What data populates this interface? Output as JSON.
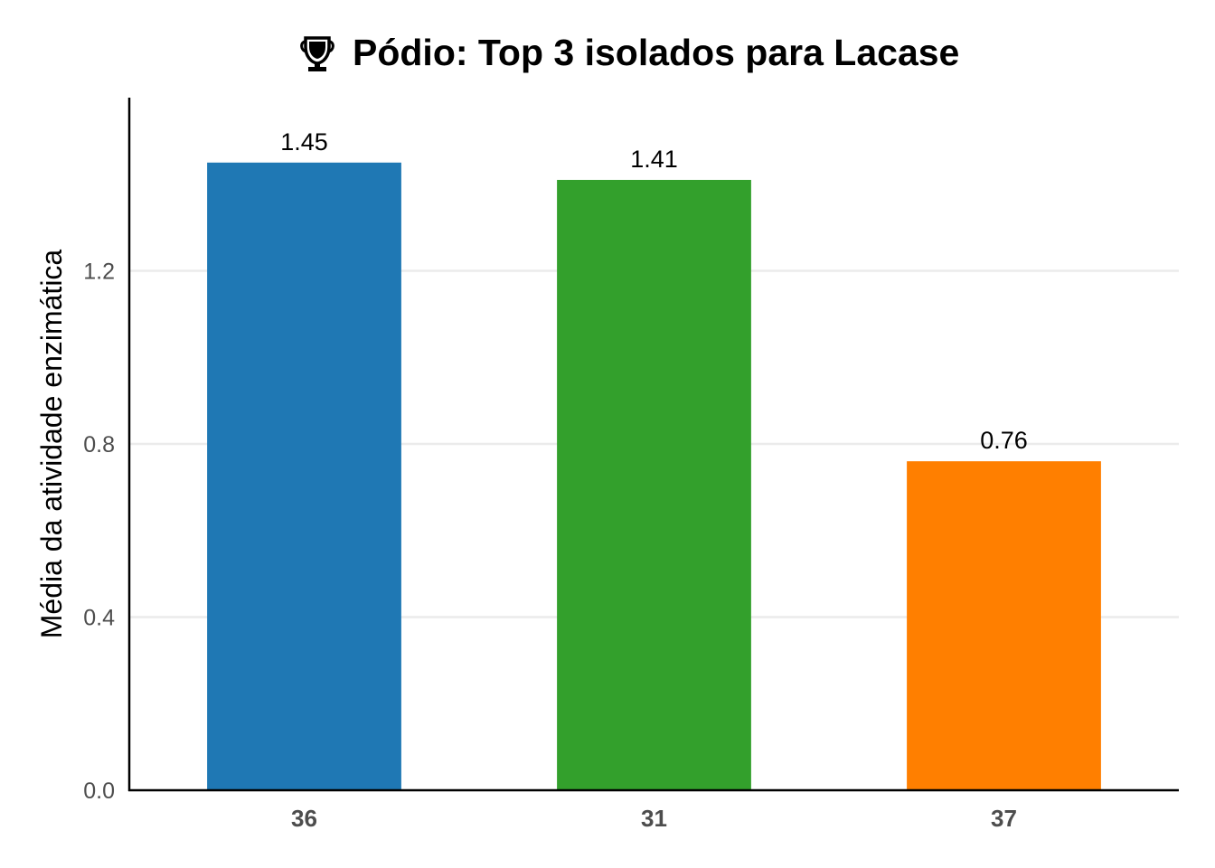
{
  "chart_data": {
    "type": "bar",
    "title": "Pódio: Top 3 isolados para Lacase",
    "title_icon": "trophy-icon",
    "xlabel": "",
    "ylabel": "Média da atividade enzimática",
    "categories": [
      "36",
      "31",
      "37"
    ],
    "values": [
      1.45,
      1.41,
      0.76
    ],
    "value_labels": [
      "1.45",
      "1.41",
      "0.76"
    ],
    "colors": [
      "#1f78b4",
      "#33a02c",
      "#ff7f00"
    ],
    "ylim": [
      0,
      1.6
    ],
    "yticks": [
      0.0,
      0.4,
      0.8,
      1.2
    ],
    "ytick_labels": [
      "0.0",
      "0.4",
      "0.8",
      "1.2"
    ],
    "grid": true,
    "legend": "none"
  }
}
